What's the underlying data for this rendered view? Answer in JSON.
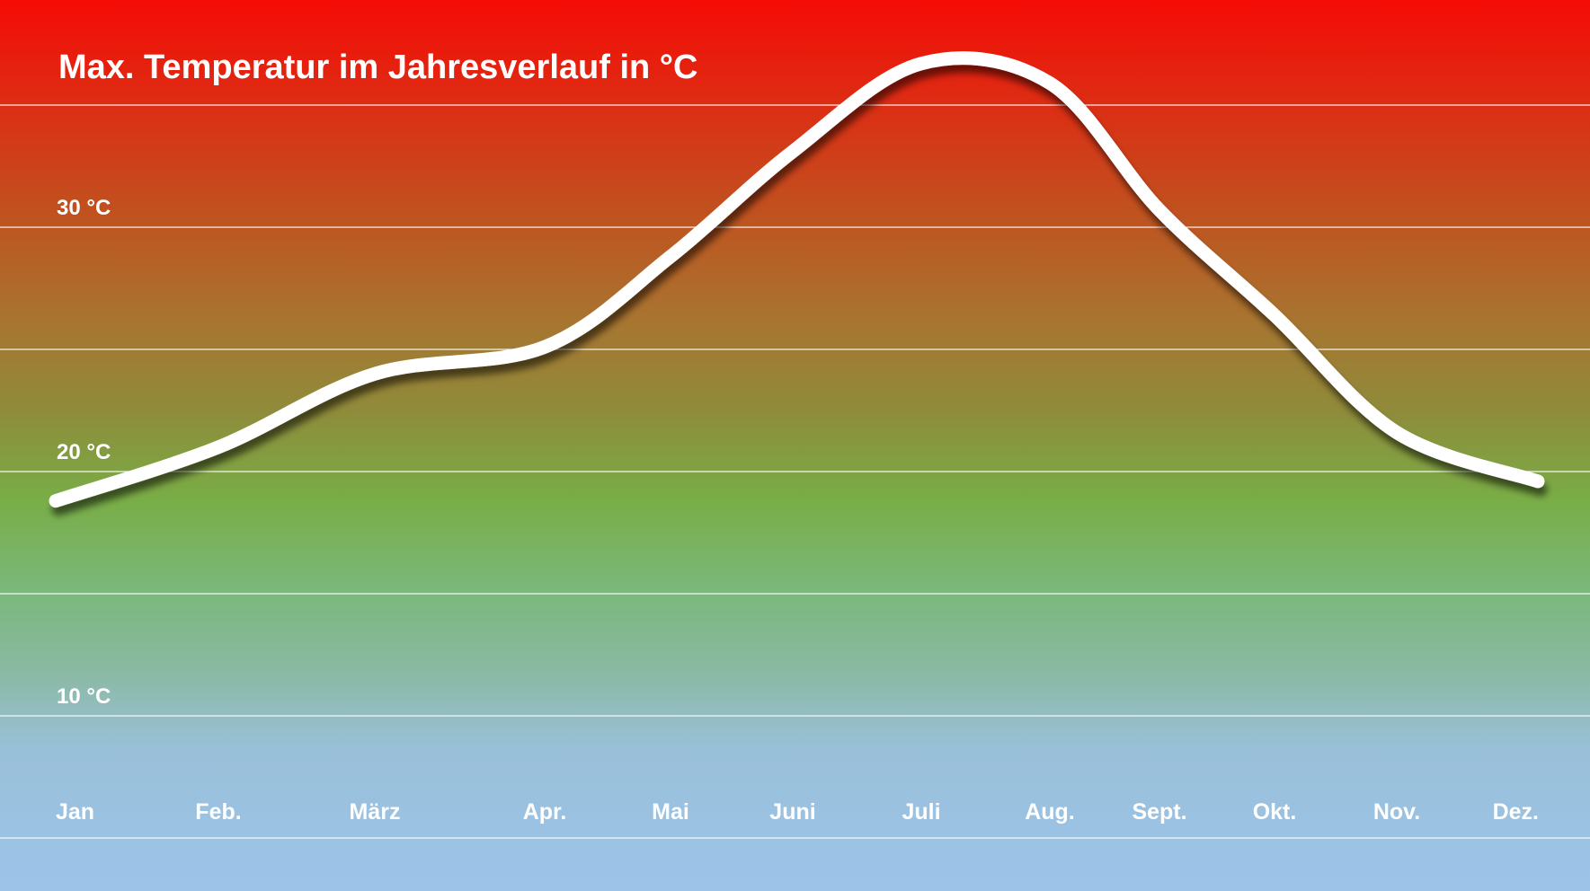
{
  "chart_data": {
    "type": "line",
    "title": "Max. Temperatur im Jahresverlauf in °C",
    "categories": [
      "Jan",
      "Feb.",
      "März",
      "Apr.",
      "Mai",
      "Juni",
      "Juli",
      "Aug.",
      "Sept.",
      "Okt.",
      "Nov.",
      "Dez."
    ],
    "series": [
      {
        "values": [
          18.8,
          21.0,
          24.0,
          25.1,
          28.8,
          33.1,
          36.7,
          35.9,
          30.7,
          26.4,
          21.6,
          19.6
        ]
      }
    ],
    "y_ticks": [
      {
        "value": 10,
        "label": "10 °C"
      },
      {
        "value": 20,
        "label": "20 °C"
      },
      {
        "value": 30,
        "label": "30 °C"
      }
    ],
    "ylim": [
      5,
      40
    ],
    "grid": true,
    "legend": "none",
    "colors": {
      "line": "#ffffff",
      "gridline": "#ffffff",
      "background_top": "#f50b05",
      "background_middle": "#79ad46",
      "background_bottom": "#9dc3ea"
    }
  }
}
